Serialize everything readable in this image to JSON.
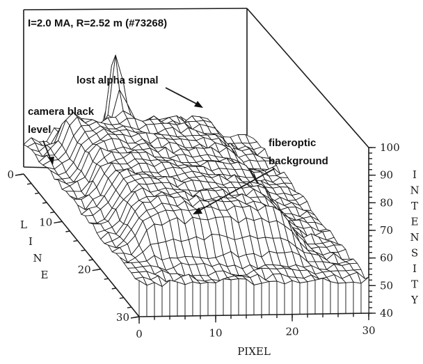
{
  "chart_data": {
    "type": "surface",
    "title": "I=2.0 MA, R=2.52 m (#73268)",
    "xlabel": "PIXEL",
    "ylabel": "LINE",
    "zlabel": "INTENSITY",
    "xlim": [
      0,
      30
    ],
    "ylim": [
      0,
      30
    ],
    "zlim": [
      40,
      100
    ],
    "x_ticks": [
      "0",
      "10",
      "20",
      "30"
    ],
    "y_ticks": [
      "0",
      "10",
      "20",
      "30"
    ],
    "z_ticks": [
      "40",
      "50",
      "60",
      "70",
      "80",
      "90",
      "100"
    ],
    "grid_lines": 30,
    "annotations": [
      {
        "text": "lost alpha signal",
        "pixel": 11,
        "line": 1,
        "intensity": 100
      },
      {
        "text": "camera black level",
        "pixel": 0,
        "line": 3,
        "intensity": 51
      },
      {
        "text": "fiberoptic background",
        "pixel": 7,
        "line": 16,
        "intensity": 67
      }
    ],
    "surface_model": {
      "floor_level": 52,
      "plateau_level": 67,
      "plateau_pixel_range": [
        3.5,
        23.5
      ],
      "plateau_line_range": [
        2,
        25
      ],
      "peak": {
        "pixel": 11.3,
        "line": 1.5,
        "intensity": 100
      },
      "left_ridge": {
        "pixel": 4.5,
        "line_range": [
          0,
          4
        ],
        "intensity": 72
      }
    }
  }
}
